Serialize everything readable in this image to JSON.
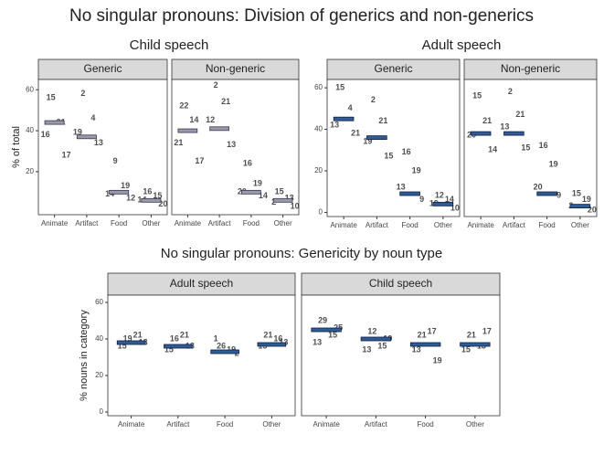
{
  "title": "No singular pronouns: Division of generics and non-generics",
  "chart_data": [
    {
      "type": "strip",
      "title": "Child speech",
      "y_label": "% of total",
      "ylim": [
        -1,
        65
      ],
      "yticks": [
        20,
        40,
        60
      ],
      "color": "#9d93c9",
      "mean_color": "#9a9aa6",
      "mean_stroke": "#333355",
      "categories": [
        "Animate",
        "Artifact",
        "Food",
        "Other"
      ],
      "facets": [
        {
          "name": "Generic",
          "means": [
            44,
            37,
            10,
            6
          ],
          "points": [
            [
              [
                "15",
                56
              ],
              [
                "21",
                44
              ],
              [
                "16",
                38
              ],
              [
                "17",
                28
              ]
            ],
            [
              [
                "2",
                58
              ],
              [
                "4",
                46
              ],
              [
                "19",
                39
              ],
              [
                "13",
                34
              ]
            ],
            [
              [
                "9",
                25
              ],
              [
                "19",
                13
              ],
              [
                "14",
                9
              ],
              [
                "12",
                7
              ]
            ],
            [
              [
                "16",
                10
              ],
              [
                "15",
                8
              ],
              [
                "14",
                6
              ],
              [
                "20",
                4
              ]
            ]
          ]
        },
        {
          "name": "Non-generic",
          "means": [
            40,
            41,
            10,
            6
          ],
          "points": [
            [
              [
                "22",
                52
              ],
              [
                "14",
                45
              ],
              [
                "21",
                34
              ],
              [
                "17",
                25
              ]
            ],
            [
              [
                "2",
                62
              ],
              [
                "21",
                54
              ],
              [
                "12",
                45
              ],
              [
                "13",
                33
              ]
            ],
            [
              [
                "16",
                24
              ],
              [
                "19",
                14
              ],
              [
                "20",
                10
              ],
              [
                "14",
                8
              ]
            ],
            [
              [
                "15",
                10
              ],
              [
                "13",
                7
              ],
              [
                "2",
                5
              ],
              [
                "10",
                3
              ]
            ]
          ]
        }
      ]
    },
    {
      "type": "strip",
      "title": "Adult speech",
      "ylim": [
        -2,
        64
      ],
      "yticks": [
        0,
        20,
        40,
        60
      ],
      "color": "#2e5d96",
      "mean_color": "#2e5d96",
      "mean_stroke": "#101a40",
      "categories": [
        "Animate",
        "Artifact",
        "Food",
        "Other"
      ],
      "facets": [
        {
          "name": "Generic",
          "means": [
            45,
            36,
            9,
            4
          ],
          "points": [
            [
              [
                "15",
                60
              ],
              [
                "4",
                50
              ],
              [
                "13",
                42
              ],
              [
                "21",
                38
              ]
            ],
            [
              [
                "2",
                54
              ],
              [
                "21",
                44
              ],
              [
                "19",
                34
              ],
              [
                "15",
                27
              ]
            ],
            [
              [
                "16",
                29
              ],
              [
                "19",
                20
              ],
              [
                "13",
                12
              ],
              [
                "9",
                6
              ]
            ],
            [
              [
                "12",
                8
              ],
              [
                "14",
                6
              ],
              [
                "19",
                4
              ],
              [
                "10",
                2
              ]
            ]
          ]
        },
        {
          "name": "Non-generic",
          "means": [
            38,
            38,
            9,
            3
          ],
          "points": [
            [
              [
                "15",
                56
              ],
              [
                "21",
                44
              ],
              [
                "20",
                37
              ],
              [
                "14",
                30
              ]
            ],
            [
              [
                "2",
                58
              ],
              [
                "21",
                47
              ],
              [
                "13",
                41
              ],
              [
                "15",
                31
              ]
            ],
            [
              [
                "16",
                32
              ],
              [
                "19",
                23
              ],
              [
                "20",
                12
              ],
              [
                "9",
                8
              ]
            ],
            [
              [
                "15",
                9
              ],
              [
                "19",
                6
              ],
              [
                "2",
                3
              ],
              [
                "20",
                1
              ]
            ]
          ]
        }
      ]
    },
    {
      "type": "strip",
      "title": "No singular pronouns: Genericity by noun type",
      "y_label": "% nouns in category",
      "ylim": [
        -2,
        64
      ],
      "yticks": [
        0,
        20,
        40,
        60
      ],
      "color": "#8277bf",
      "mean_color": "#2e5d96",
      "mean_stroke": "#101a40",
      "categories": [
        "Animate",
        "Artifact",
        "Food",
        "Other"
      ],
      "facets": [
        {
          "name": "Adult speech",
          "means": [
            38,
            36,
            33,
            37
          ],
          "points": [
            [
              [
                "19",
                40
              ],
              [
                "21",
                42
              ],
              [
                "15",
                36
              ],
              [
                "13",
                38
              ]
            ],
            [
              [
                "16",
                40
              ],
              [
                "21",
                42
              ],
              [
                "15",
                34
              ],
              [
                "13",
                36
              ]
            ],
            [
              [
                "26",
                36
              ],
              [
                "19",
                34
              ],
              [
                "1",
                40
              ],
              [
                "2",
                32
              ]
            ],
            [
              [
                "21",
                42
              ],
              [
                "16",
                40
              ],
              [
                "15",
                36
              ],
              [
                "13",
                38
              ]
            ]
          ]
        },
        {
          "name": "Child speech",
          "means": [
            45,
            40,
            37,
            37
          ],
          "points": [
            [
              [
                "29",
                50
              ],
              [
                "15",
                42
              ],
              [
                "13",
                38
              ],
              [
                "25",
                46
              ]
            ],
            [
              [
                "12",
                44
              ],
              [
                "15",
                36
              ],
              [
                "13",
                34
              ],
              [
                "19",
                40
              ]
            ],
            [
              [
                "21",
                42
              ],
              [
                "17",
                44
              ],
              [
                "13",
                34
              ],
              [
                "19",
                28
              ]
            ],
            [
              [
                "21",
                42
              ],
              [
                "13",
                36
              ],
              [
                "15",
                34
              ],
              [
                "17",
                44
              ]
            ]
          ]
        }
      ]
    }
  ]
}
